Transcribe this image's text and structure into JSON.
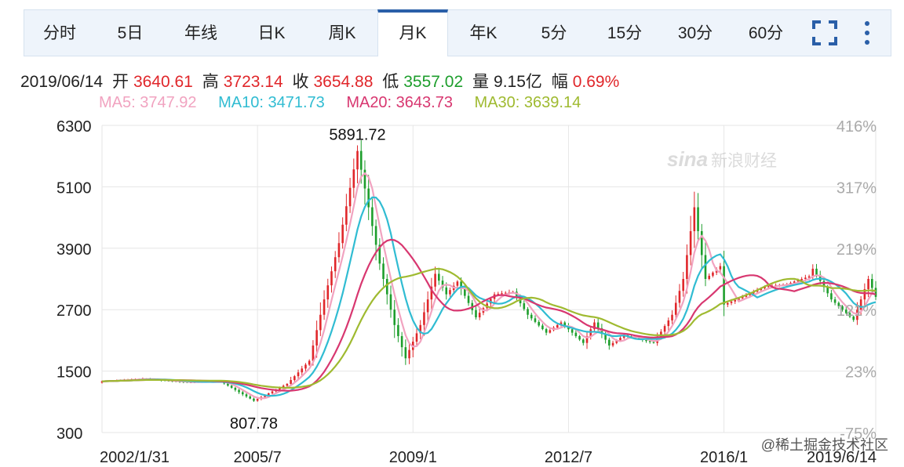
{
  "tabs": [
    {
      "label": "分时"
    },
    {
      "label": "5日"
    },
    {
      "label": "年线"
    },
    {
      "label": "日K"
    },
    {
      "label": "周K"
    },
    {
      "label": "月K"
    },
    {
      "label": "年K"
    },
    {
      "label": "5分"
    },
    {
      "label": "15分"
    },
    {
      "label": "30分"
    },
    {
      "label": "60分"
    }
  ],
  "active_tab": "月K",
  "icons": {
    "fullscreen": "fullscreen-icon",
    "more": "more-vertical-icon"
  },
  "quote": {
    "date": "2019/06/14",
    "open_label": "开",
    "open": "3640.61",
    "high_label": "高",
    "high": "3723.14",
    "close_label": "收",
    "close": "3654.88",
    "low_label": "低",
    "low": "3557.02",
    "volume_label": "量",
    "volume": "9.15亿",
    "change_label": "幅",
    "change": "0.69%"
  },
  "ma": {
    "ma5": "MA5: 3747.92",
    "ma10": "MA10: 3471.73",
    "ma20": "MA20: 3643.73",
    "ma30": "MA30: 3639.14"
  },
  "watermark": {
    "logo": "sina",
    "text": "新浪财经"
  },
  "credit": "@稀土掘金技术社区",
  "colors": {
    "up": "#e0262a",
    "down": "#1d9e2c",
    "ma5": "#f1a3c0",
    "ma10": "#30bcd2",
    "ma20": "#d83770",
    "ma30": "#9fba30",
    "accent": "#2a5fa8"
  },
  "chart_data": {
    "type": "candlestick",
    "ylim": [
      300,
      6300
    ],
    "y_ticks": [
      "6300",
      "5100",
      "3900",
      "2700",
      "1500",
      "300"
    ],
    "right_ticks": [
      "416%",
      "317%",
      "219%",
      "121%",
      "23%",
      "-75%"
    ],
    "x_ticks": [
      "2002/1/31",
      "2005/7",
      "2009/1",
      "2012/7",
      "2016/1",
      "2019/6/14"
    ],
    "annotations": [
      {
        "text": "5891.72",
        "x": "2007/10",
        "y": 5891.72
      },
      {
        "text": "807.78",
        "x": "2005/6",
        "y": 807.78
      }
    ],
    "anchors": [
      {
        "x": "2002/1",
        "y": 1300
      },
      {
        "x": "2002/12",
        "y": 1350
      },
      {
        "x": "2003/12",
        "y": 1280
      },
      {
        "x": "2004/9",
        "y": 1300
      },
      {
        "x": "2005/6",
        "y": 920
      },
      {
        "x": "2006/3",
        "y": 1250
      },
      {
        "x": "2006/9",
        "y": 1700
      },
      {
        "x": "2007/1",
        "y": 2900
      },
      {
        "x": "2007/5",
        "y": 4000
      },
      {
        "x": "2007/10",
        "y": 5800
      },
      {
        "x": "2008/1",
        "y": 4700
      },
      {
        "x": "2008/4",
        "y": 3600
      },
      {
        "x": "2008/8",
        "y": 2400
      },
      {
        "x": "2008/11",
        "y": 1750
      },
      {
        "x": "2009/3",
        "y": 2400
      },
      {
        "x": "2009/7",
        "y": 3400
      },
      {
        "x": "2009/10",
        "y": 3000
      },
      {
        "x": "2010/1",
        "y": 3250
      },
      {
        "x": "2010/6",
        "y": 2550
      },
      {
        "x": "2010/11",
        "y": 3000
      },
      {
        "x": "2011/4",
        "y": 3050
      },
      {
        "x": "2011/8",
        "y": 2600
      },
      {
        "x": "2012/1",
        "y": 2250
      },
      {
        "x": "2012/5",
        "y": 2450
      },
      {
        "x": "2012/11",
        "y": 2050
      },
      {
        "x": "2013/2",
        "y": 2450
      },
      {
        "x": "2013/6",
        "y": 2000
      },
      {
        "x": "2013/10",
        "y": 2200
      },
      {
        "x": "2014/6",
        "y": 2050
      },
      {
        "x": "2014/11",
        "y": 2600
      },
      {
        "x": "2015/2",
        "y": 3300
      },
      {
        "x": "2015/5",
        "y": 4700
      },
      {
        "x": "2015/8",
        "y": 3300
      },
      {
        "x": "2015/12",
        "y": 3550
      },
      {
        "x": "2016/1",
        "y": 2800
      },
      {
        "x": "2016/6",
        "y": 2950
      },
      {
        "x": "2016/12",
        "y": 3150
      },
      {
        "x": "2017/6",
        "y": 3200
      },
      {
        "x": "2017/12",
        "y": 3350
      },
      {
        "x": "2018/1",
        "y": 3500
      },
      {
        "x": "2018/6",
        "y": 2900
      },
      {
        "x": "2018/12",
        "y": 2500
      },
      {
        "x": "2019/4",
        "y": 3300
      },
      {
        "x": "2019/6",
        "y": 2950
      }
    ]
  }
}
